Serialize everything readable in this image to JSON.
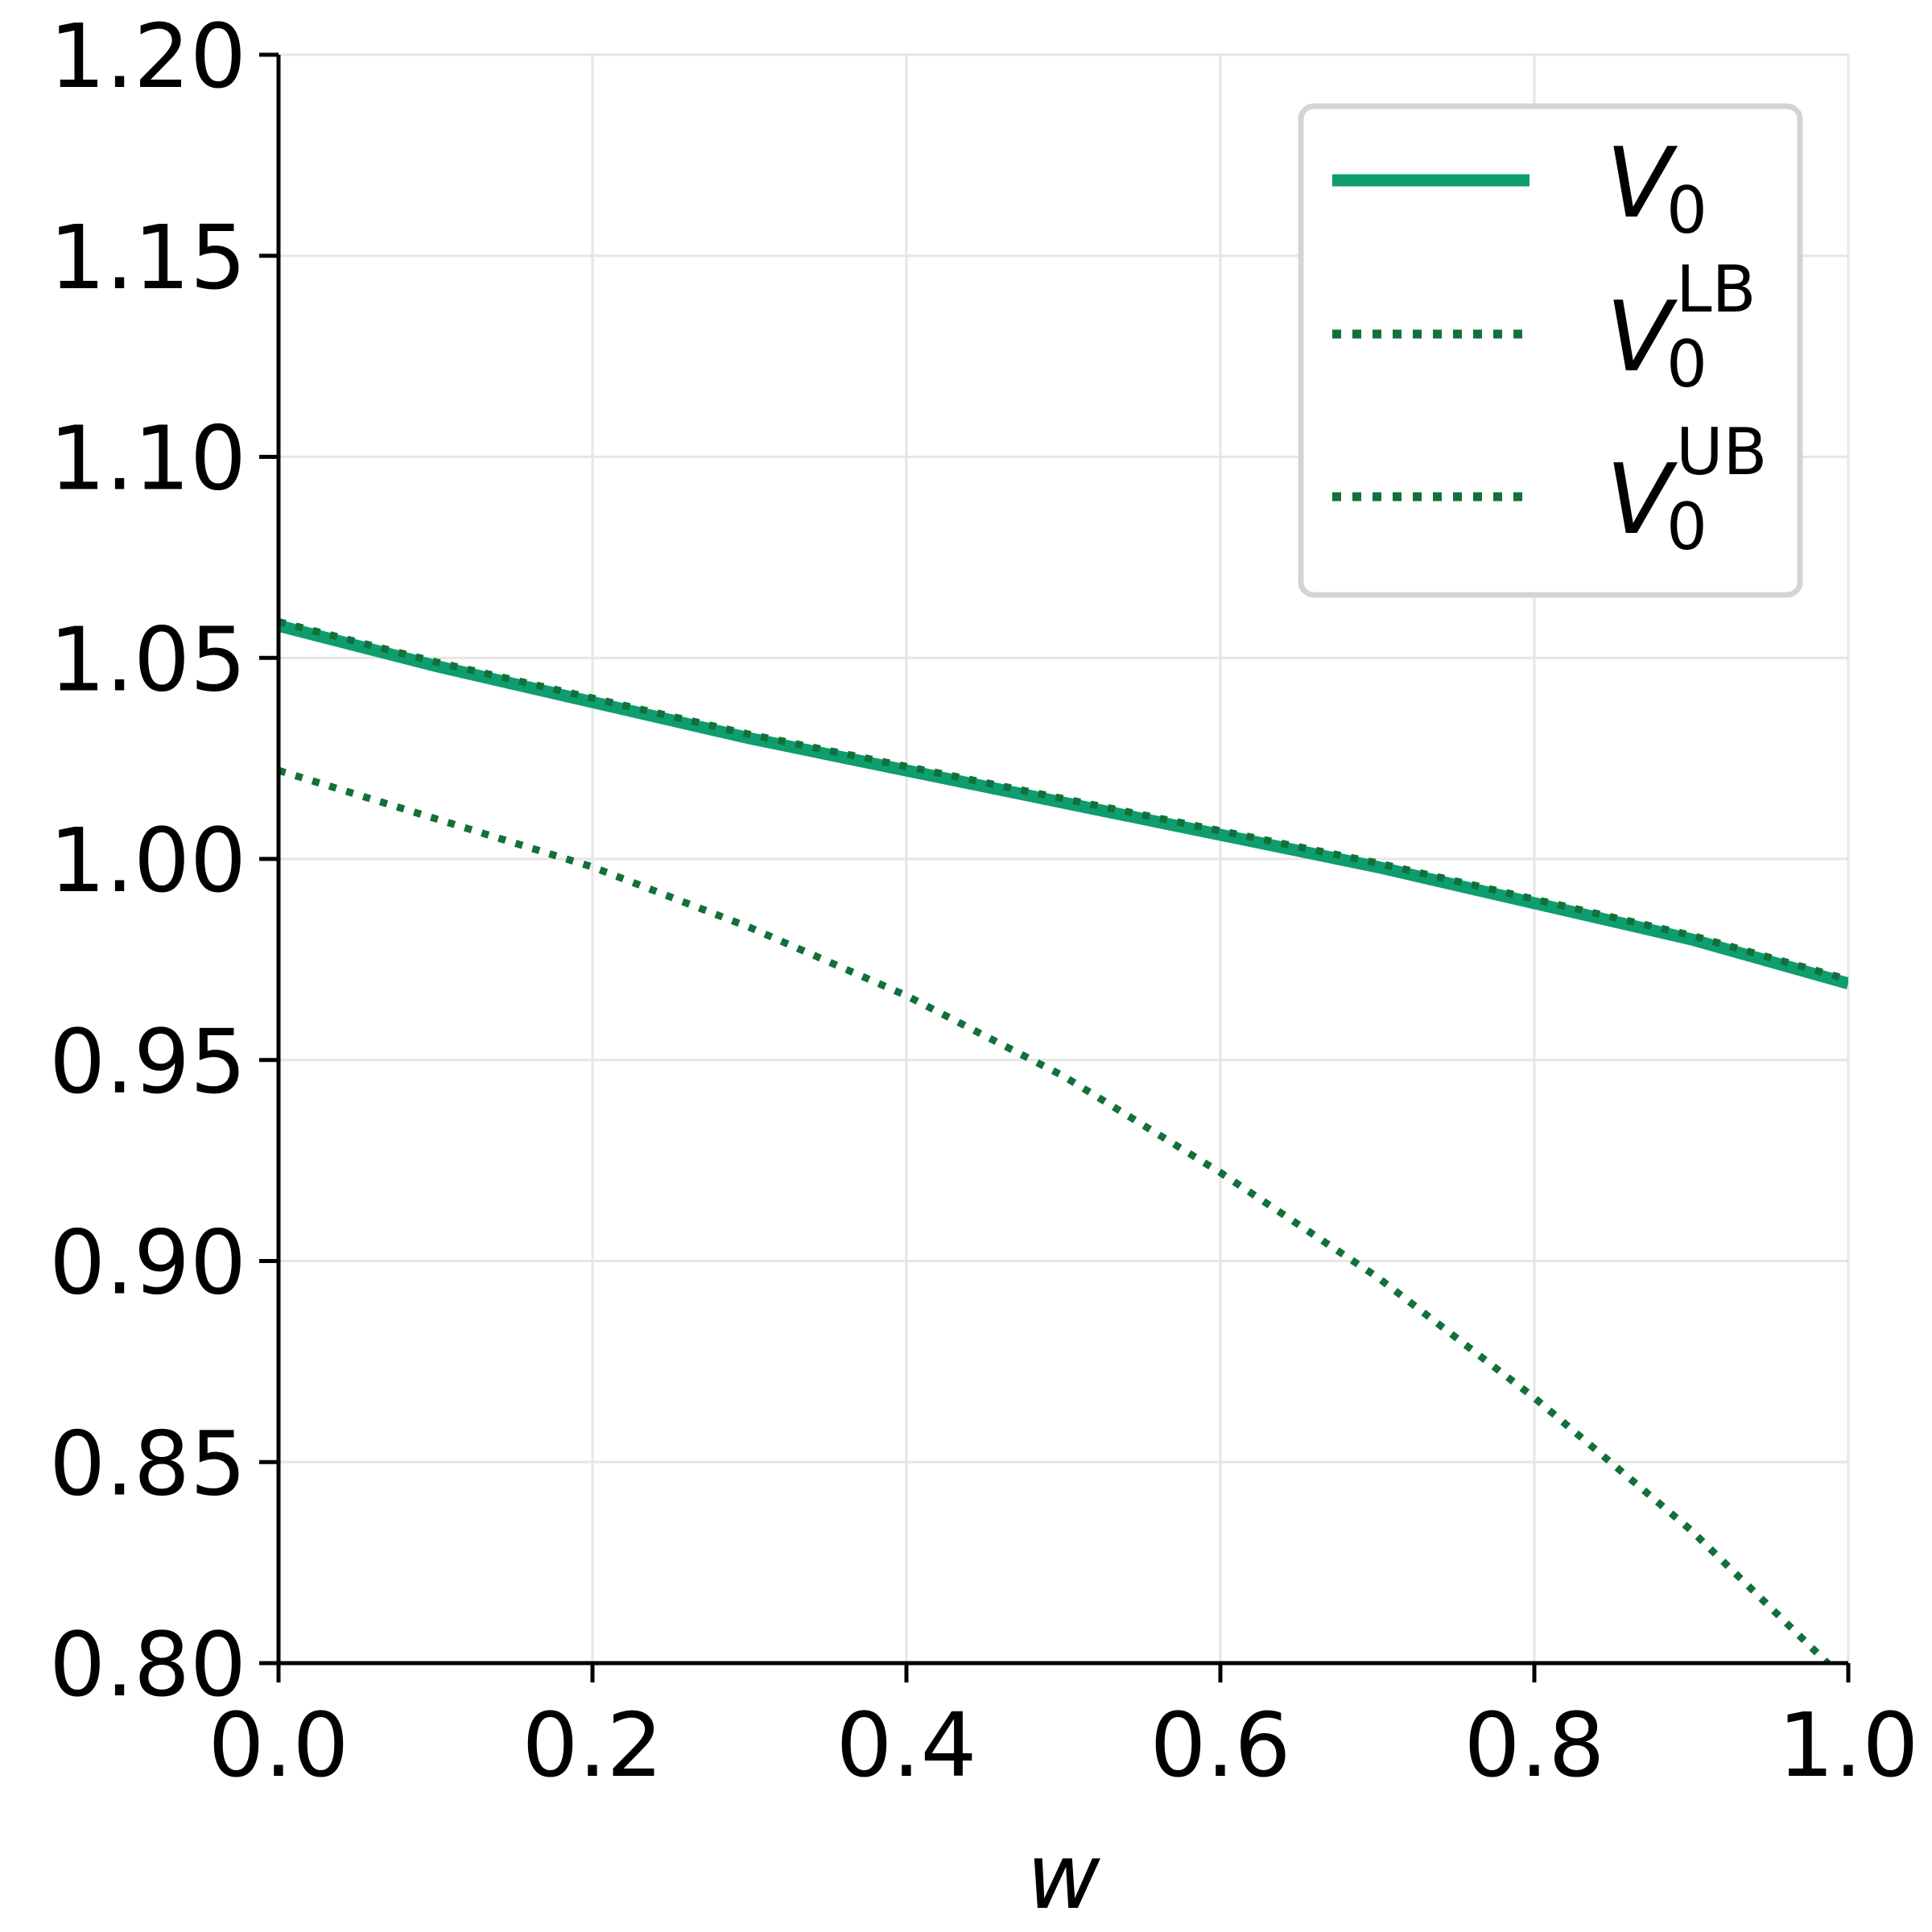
{
  "chart_data": {
    "type": "line",
    "xlabel": "w",
    "ylabel": "",
    "xlim": [
      0.0,
      1.0
    ],
    "ylim": [
      0.8,
      1.2
    ],
    "xticks": [
      "0.0",
      "0.2",
      "0.4",
      "0.6",
      "0.8",
      "1.0"
    ],
    "yticks": [
      "0.80",
      "0.85",
      "0.90",
      "0.95",
      "1.00",
      "1.05",
      "1.10",
      "1.15",
      "1.20"
    ],
    "grid": true,
    "legend_position": "top-right",
    "x": [
      0.0,
      0.1,
      0.2,
      0.3,
      0.4,
      0.5,
      0.6,
      0.7,
      0.8,
      0.9,
      1.0
    ],
    "series": [
      {
        "name": "V0",
        "legend": {
          "main": "V",
          "sub": "0",
          "sup": ""
        },
        "style": "solid",
        "color": "#0e9d6e",
        "values": [
          1.058,
          1.048,
          1.039,
          1.03,
          1.022,
          1.014,
          1.006,
          0.998,
          0.989,
          0.98,
          0.969
        ]
      },
      {
        "name": "V0 LB",
        "legend": {
          "main": "V",
          "sub": "0",
          "sup": "LB"
        },
        "style": "dotted",
        "color": "#12703a",
        "values": [
          1.022,
          1.01,
          0.998,
          0.983,
          0.966,
          0.946,
          0.922,
          0.896,
          0.866,
          0.833,
          0.795
        ]
      },
      {
        "name": "V0 UB",
        "legend": {
          "main": "V",
          "sub": "0",
          "sup": "UB"
        },
        "style": "dotted",
        "color": "#12703a",
        "values": [
          1.059,
          1.049,
          1.04,
          1.031,
          1.023,
          1.015,
          1.007,
          0.999,
          0.99,
          0.981,
          0.97
        ]
      }
    ]
  }
}
